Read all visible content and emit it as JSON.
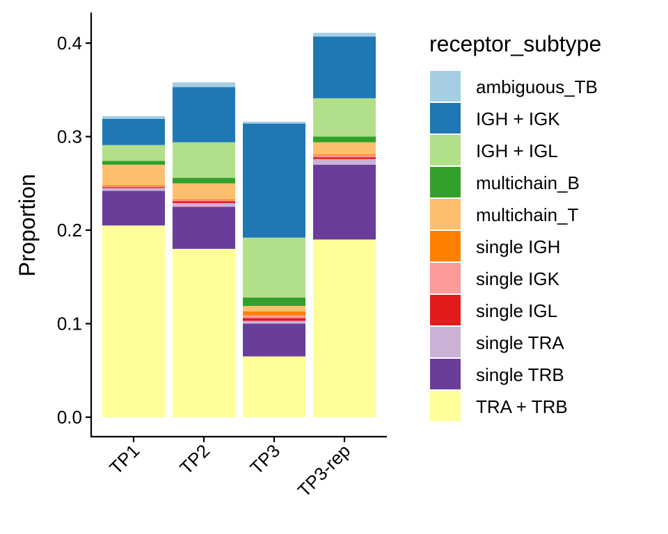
{
  "chart_data": {
    "type": "bar",
    "stacked": true,
    "title": "",
    "xlabel": "",
    "ylabel": "Proportion",
    "ylim": [
      0,
      0.42
    ],
    "yticks": [
      0.0,
      0.1,
      0.2,
      0.3,
      0.4
    ],
    "ytick_labels": [
      "0.0",
      "0.1",
      "0.2",
      "0.3",
      "0.4"
    ],
    "categories": [
      "TP1",
      "TP2",
      "TP3",
      "TP3-rep"
    ],
    "legend": {
      "title": "receptor_subtype",
      "position": "right"
    },
    "grid": false,
    "series": [
      {
        "name": "TRA + TRB",
        "color": "#FFFF99",
        "values": [
          0.205,
          0.18,
          0.065,
          0.19
        ]
      },
      {
        "name": "single TRB",
        "color": "#6A3D9A",
        "values": [
          0.037,
          0.045,
          0.035,
          0.08
        ]
      },
      {
        "name": "single TRA",
        "color": "#CAB2D6",
        "values": [
          0.003,
          0.004,
          0.003,
          0.006
        ]
      },
      {
        "name": "single IGL",
        "color": "#E31A1C",
        "values": [
          0.001,
          0.002,
          0.003,
          0.002
        ]
      },
      {
        "name": "single IGK",
        "color": "#FB9A99",
        "values": [
          0.001,
          0.001,
          0.003,
          0.002
        ]
      },
      {
        "name": "single IGH",
        "color": "#FF7F00",
        "values": [
          0.001,
          0.001,
          0.004,
          0.001
        ]
      },
      {
        "name": "multichain_T",
        "color": "#FDBF6F",
        "values": [
          0.022,
          0.017,
          0.006,
          0.013
        ]
      },
      {
        "name": "multichain_B",
        "color": "#33A02C",
        "values": [
          0.004,
          0.006,
          0.009,
          0.006
        ]
      },
      {
        "name": "IGH + IGL",
        "color": "#B2DF8A",
        "values": [
          0.017,
          0.038,
          0.064,
          0.041
        ]
      },
      {
        "name": "IGH + IGK",
        "color": "#1F78B4",
        "values": [
          0.028,
          0.059,
          0.122,
          0.066
        ]
      },
      {
        "name": "ambiguous_TB",
        "color": "#A6CEE3",
        "values": [
          0.003,
          0.005,
          0.002,
          0.004
        ]
      }
    ],
    "legend_order": [
      "ambiguous_TB",
      "IGH + IGK",
      "IGH + IGL",
      "multichain_B",
      "multichain_T",
      "single IGH",
      "single IGK",
      "single IGL",
      "single TRA",
      "single TRB",
      "TRA + TRB"
    ]
  }
}
